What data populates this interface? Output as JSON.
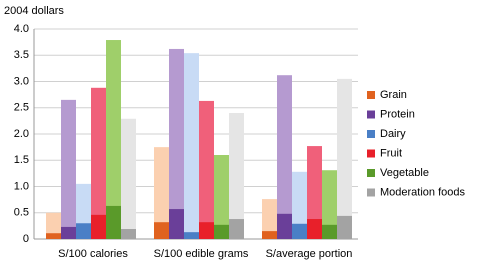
{
  "chart_data": {
    "type": "bar",
    "y_label": "2004 dollars",
    "categories": [
      "S/100 calories",
      "S/100 edible grams",
      "S/average portion"
    ],
    "series": [
      {
        "name": "Grain",
        "color": "#e0621f",
        "light_color": "#fbd0b0",
        "values": [
          0.11,
          0.32,
          0.15
        ],
        "high_values": [
          0.5,
          1.75,
          0.76
        ]
      },
      {
        "name": "Protein",
        "color": "#6a3f99",
        "light_color": "#b59ad0",
        "values": [
          0.23,
          0.57,
          0.48
        ],
        "high_values": [
          2.65,
          3.62,
          3.12
        ]
      },
      {
        "name": "Dairy",
        "color": "#4a7fc6",
        "light_color": "#c8dbf5",
        "values": [
          0.3,
          0.13,
          0.29
        ],
        "high_values": [
          1.05,
          3.54,
          1.28
        ]
      },
      {
        "name": "Fruit",
        "color": "#e8202a",
        "light_color": "#f0607a",
        "values": [
          0.46,
          0.32,
          0.38
        ],
        "high_values": [
          2.88,
          2.63,
          1.77
        ]
      },
      {
        "name": "Vegetable",
        "color": "#5a9a2a",
        "light_color": "#9fcf6a",
        "values": [
          0.63,
          0.27,
          0.27
        ],
        "high_values": [
          3.79,
          1.6,
          1.31
        ]
      },
      {
        "name": "Moderation foods",
        "color": "#a3a3a3",
        "light_color": "#e5e5e5",
        "values": [
          0.19,
          0.38,
          0.44
        ],
        "high_values": [
          2.29,
          2.4,
          3.05
        ]
      }
    ],
    "ylim": [
      0,
      4
    ],
    "yticks": [
      0,
      0.5,
      {
        "value": 1,
        "label": "1.0"
      },
      1.5,
      {
        "value": 2,
        "label": "2.0"
      },
      2.5,
      {
        "value": 3,
        "label": "3.0"
      },
      3.5,
      {
        "value": 4,
        "label": "4.0"
      }
    ],
    "grid": true
  }
}
